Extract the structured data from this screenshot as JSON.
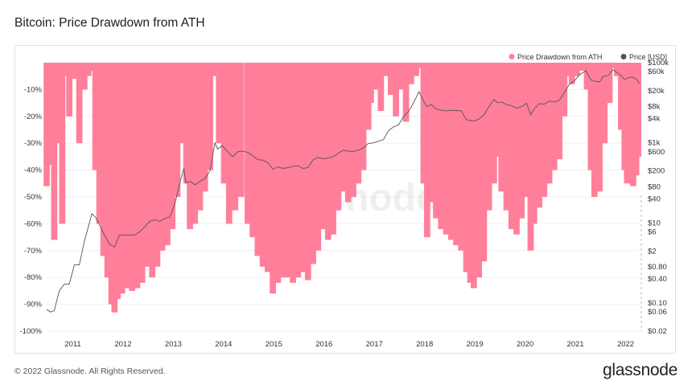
{
  "page": {
    "title": "Bitcoin: Price Drawdown from ATH",
    "footer": "© 2022 Glassnode. All Rights Reserved.",
    "brand": "glassnode",
    "watermark": "glassnode"
  },
  "chart_data": {
    "type": "bar",
    "title": "Bitcoin: Price Drawdown from ATH",
    "x_ticks": [
      "2011",
      "2012",
      "2013",
      "2014",
      "2015",
      "2016",
      "2017",
      "2018",
      "2019",
      "2020",
      "2021",
      "2022"
    ],
    "y_left_ticks": [
      "-10%",
      "-20%",
      "-30%",
      "-40%",
      "-50%",
      "-60%",
      "-70%",
      "-80%",
      "-90%",
      "-100%"
    ],
    "y_left_range": [
      -100,
      0
    ],
    "y_right_ticks": [
      "$100k",
      "$60k",
      "$20k",
      "$8k",
      "$4k",
      "$1k",
      "$600",
      "$200",
      "$80",
      "$40",
      "$10",
      "$6",
      "$2",
      "$0.80",
      "$0.40",
      "$0.10",
      "$0.06",
      "$0.02"
    ],
    "y_right_scale": "log",
    "y_right_range": [
      0.02,
      100000
    ],
    "legend": {
      "placement": "top-right"
    },
    "grid": true,
    "colors": {
      "drawdown": "#ff7f9a",
      "price": "#555555"
    },
    "series": [
      {
        "name": "Price Drawdown from ATH",
        "kind": "bar",
        "points": [
          [
            2010.55,
            -46
          ],
          [
            2010.62,
            -38
          ],
          [
            2010.7,
            -66
          ],
          [
            2010.78,
            -30
          ],
          [
            2010.86,
            -60
          ],
          [
            2010.93,
            -5
          ],
          [
            2011.0,
            -20
          ],
          [
            2011.1,
            -6
          ],
          [
            2011.2,
            -30
          ],
          [
            2011.3,
            -10
          ],
          [
            2011.38,
            -5
          ],
          [
            2011.45,
            -3
          ],
          [
            2011.52,
            -40
          ],
          [
            2011.6,
            -60
          ],
          [
            2011.68,
            -72
          ],
          [
            2011.76,
            -80
          ],
          [
            2011.84,
            -90
          ],
          [
            2011.9,
            -93
          ],
          [
            2011.96,
            -88
          ],
          [
            2012.05,
            -86
          ],
          [
            2012.15,
            -84
          ],
          [
            2012.25,
            -85
          ],
          [
            2012.35,
            -84
          ],
          [
            2012.45,
            -82
          ],
          [
            2012.55,
            -76
          ],
          [
            2012.65,
            -80
          ],
          [
            2012.75,
            -76
          ],
          [
            2012.85,
            -70
          ],
          [
            2012.95,
            -68
          ],
          [
            2013.05,
            -62
          ],
          [
            2013.15,
            -50
          ],
          [
            2013.22,
            -30
          ],
          [
            2013.28,
            -3
          ],
          [
            2013.33,
            -45
          ],
          [
            2013.4,
            -62
          ],
          [
            2013.5,
            -60
          ],
          [
            2013.6,
            -55
          ],
          [
            2013.7,
            -48
          ],
          [
            2013.8,
            -40
          ],
          [
            2013.88,
            -5
          ],
          [
            2013.93,
            -2
          ],
          [
            2013.98,
            -30
          ],
          [
            2014.08,
            -45
          ],
          [
            2014.18,
            -60
          ],
          [
            2014.3,
            -55
          ],
          [
            2014.42,
            -50
          ],
          [
            2014.55,
            -60
          ],
          [
            2014.65,
            -65
          ],
          [
            2014.75,
            -72
          ],
          [
            2014.85,
            -76
          ],
          [
            2014.95,
            -78
          ],
          [
            2015.05,
            -86
          ],
          [
            2015.15,
            -82
          ],
          [
            2015.25,
            -80
          ],
          [
            2015.35,
            -80
          ],
          [
            2015.45,
            -82
          ],
          [
            2015.55,
            -80
          ],
          [
            2015.65,
            -78
          ],
          [
            2015.75,
            -81
          ],
          [
            2015.85,
            -75
          ],
          [
            2015.95,
            -70
          ],
          [
            2016.05,
            -62
          ],
          [
            2016.15,
            -66
          ],
          [
            2016.25,
            -64
          ],
          [
            2016.35,
            -55
          ],
          [
            2016.45,
            -48
          ],
          [
            2016.55,
            -52
          ],
          [
            2016.65,
            -50
          ],
          [
            2016.75,
            -45
          ],
          [
            2016.85,
            -40
          ],
          [
            2016.95,
            -25
          ],
          [
            2017.0,
            -15
          ],
          [
            2017.1,
            -10
          ],
          [
            2017.2,
            -18
          ],
          [
            2017.3,
            -5
          ],
          [
            2017.4,
            -12
          ],
          [
            2017.5,
            -20
          ],
          [
            2017.6,
            -10
          ],
          [
            2017.7,
            -22
          ],
          [
            2017.8,
            -8
          ],
          [
            2017.9,
            -5
          ],
          [
            2017.96,
            -2
          ],
          [
            2018.05,
            -45
          ],
          [
            2018.12,
            -65
          ],
          [
            2018.2,
            -52
          ],
          [
            2018.3,
            -58
          ],
          [
            2018.4,
            -62
          ],
          [
            2018.5,
            -64
          ],
          [
            2018.6,
            -66
          ],
          [
            2018.7,
            -68
          ],
          [
            2018.8,
            -70
          ],
          [
            2018.9,
            -78
          ],
          [
            2018.98,
            -82
          ],
          [
            2019.05,
            -84
          ],
          [
            2019.15,
            -80
          ],
          [
            2019.25,
            -74
          ],
          [
            2019.35,
            -55
          ],
          [
            2019.45,
            -45
          ],
          [
            2019.52,
            -35
          ],
          [
            2019.6,
            -48
          ],
          [
            2019.7,
            -55
          ],
          [
            2019.8,
            -62
          ],
          [
            2019.9,
            -64
          ],
          [
            2020.0,
            -58
          ],
          [
            2020.1,
            -50
          ],
          [
            2020.18,
            -70
          ],
          [
            2020.25,
            -60
          ],
          [
            2020.35,
            -54
          ],
          [
            2020.45,
            -50
          ],
          [
            2020.55,
            -45
          ],
          [
            2020.65,
            -40
          ],
          [
            2020.75,
            -36
          ],
          [
            2020.85,
            -20
          ],
          [
            2020.92,
            -5
          ],
          [
            2021.0,
            -8
          ],
          [
            2021.1,
            -5
          ],
          [
            2021.2,
            -3
          ],
          [
            2021.3,
            -10
          ],
          [
            2021.38,
            -40
          ],
          [
            2021.45,
            -50
          ],
          [
            2021.55,
            -48
          ],
          [
            2021.65,
            -30
          ],
          [
            2021.75,
            -15
          ],
          [
            2021.82,
            -2
          ],
          [
            2021.9,
            -5
          ],
          [
            2021.98,
            -25
          ],
          [
            2022.05,
            -40
          ],
          [
            2022.1,
            -45
          ],
          [
            2022.15,
            -30
          ],
          [
            2022.22,
            -46
          ],
          [
            2022.28,
            -42
          ],
          [
            2022.32,
            -35
          ]
        ]
      },
      {
        "name": "Price [USD]",
        "kind": "line",
        "points": [
          [
            2010.55,
            0.07
          ],
          [
            2010.62,
            0.06
          ],
          [
            2010.7,
            0.065
          ],
          [
            2010.8,
            0.2
          ],
          [
            2010.9,
            0.3
          ],
          [
            2011.0,
            0.3
          ],
          [
            2011.1,
            0.9
          ],
          [
            2011.2,
            0.9
          ],
          [
            2011.3,
            3.5
          ],
          [
            2011.38,
            8
          ],
          [
            2011.45,
            17
          ],
          [
            2011.52,
            14
          ],
          [
            2011.6,
            9
          ],
          [
            2011.7,
            5
          ],
          [
            2011.8,
            3
          ],
          [
            2011.9,
            2.5
          ],
          [
            2012.0,
            5
          ],
          [
            2012.1,
            5
          ],
          [
            2012.2,
            5
          ],
          [
            2012.3,
            5
          ],
          [
            2012.4,
            6
          ],
          [
            2012.5,
            8
          ],
          [
            2012.6,
            11
          ],
          [
            2012.7,
            12
          ],
          [
            2012.8,
            11
          ],
          [
            2012.9,
            13
          ],
          [
            2013.0,
            14
          ],
          [
            2013.1,
            30
          ],
          [
            2013.2,
            100
          ],
          [
            2013.28,
            230
          ],
          [
            2013.32,
            100
          ],
          [
            2013.4,
            110
          ],
          [
            2013.5,
            90
          ],
          [
            2013.6,
            110
          ],
          [
            2013.7,
            130
          ],
          [
            2013.8,
            200
          ],
          [
            2013.9,
            1000
          ],
          [
            2013.95,
            700
          ],
          [
            2014.05,
            850
          ],
          [
            2014.15,
            600
          ],
          [
            2014.25,
            450
          ],
          [
            2014.35,
            600
          ],
          [
            2014.45,
            620
          ],
          [
            2014.55,
            580
          ],
          [
            2014.65,
            480
          ],
          [
            2014.75,
            380
          ],
          [
            2014.85,
            370
          ],
          [
            2014.95,
            320
          ],
          [
            2015.05,
            220
          ],
          [
            2015.15,
            250
          ],
          [
            2015.25,
            230
          ],
          [
            2015.35,
            240
          ],
          [
            2015.45,
            260
          ],
          [
            2015.55,
            270
          ],
          [
            2015.65,
            230
          ],
          [
            2015.75,
            240
          ],
          [
            2015.85,
            380
          ],
          [
            2015.95,
            430
          ],
          [
            2016.05,
            400
          ],
          [
            2016.15,
            420
          ],
          [
            2016.25,
            450
          ],
          [
            2016.35,
            550
          ],
          [
            2016.45,
            650
          ],
          [
            2016.55,
            620
          ],
          [
            2016.65,
            610
          ],
          [
            2016.75,
            650
          ],
          [
            2016.85,
            740
          ],
          [
            2016.95,
            960
          ],
          [
            2017.05,
            1000
          ],
          [
            2017.15,
            1100
          ],
          [
            2017.25,
            1200
          ],
          [
            2017.35,
            2000
          ],
          [
            2017.45,
            2500
          ],
          [
            2017.55,
            2800
          ],
          [
            2017.65,
            4500
          ],
          [
            2017.75,
            6000
          ],
          [
            2017.85,
            10000
          ],
          [
            2017.96,
            19000
          ],
          [
            2018.05,
            11000
          ],
          [
            2018.12,
            8000
          ],
          [
            2018.2,
            9000
          ],
          [
            2018.3,
            7000
          ],
          [
            2018.4,
            6500
          ],
          [
            2018.5,
            6300
          ],
          [
            2018.6,
            6500
          ],
          [
            2018.7,
            6400
          ],
          [
            2018.8,
            6300
          ],
          [
            2018.9,
            3800
          ],
          [
            2018.98,
            3600
          ],
          [
            2019.05,
            3500
          ],
          [
            2019.15,
            3900
          ],
          [
            2019.25,
            5000
          ],
          [
            2019.35,
            8000
          ],
          [
            2019.45,
            12000
          ],
          [
            2019.52,
            10000
          ],
          [
            2019.6,
            10500
          ],
          [
            2019.7,
            9000
          ],
          [
            2019.8,
            8500
          ],
          [
            2019.9,
            7300
          ],
          [
            2020.0,
            8000
          ],
          [
            2020.1,
            9700
          ],
          [
            2020.18,
            5000
          ],
          [
            2020.25,
            7000
          ],
          [
            2020.35,
            9500
          ],
          [
            2020.45,
            9200
          ],
          [
            2020.55,
            11000
          ],
          [
            2020.65,
            10500
          ],
          [
            2020.75,
            11500
          ],
          [
            2020.85,
            18000
          ],
          [
            2020.95,
            29000
          ],
          [
            2021.05,
            35000
          ],
          [
            2021.15,
            50000
          ],
          [
            2021.28,
            63000
          ],
          [
            2021.38,
            37000
          ],
          [
            2021.48,
            34000
          ],
          [
            2021.55,
            33000
          ],
          [
            2021.62,
            45000
          ],
          [
            2021.72,
            48000
          ],
          [
            2021.82,
            67000
          ],
          [
            2021.9,
            57000
          ],
          [
            2021.98,
            47000
          ],
          [
            2022.05,
            38000
          ],
          [
            2022.12,
            42000
          ],
          [
            2022.2,
            44000
          ],
          [
            2022.28,
            39000
          ],
          [
            2022.35,
            30000
          ]
        ]
      }
    ]
  }
}
